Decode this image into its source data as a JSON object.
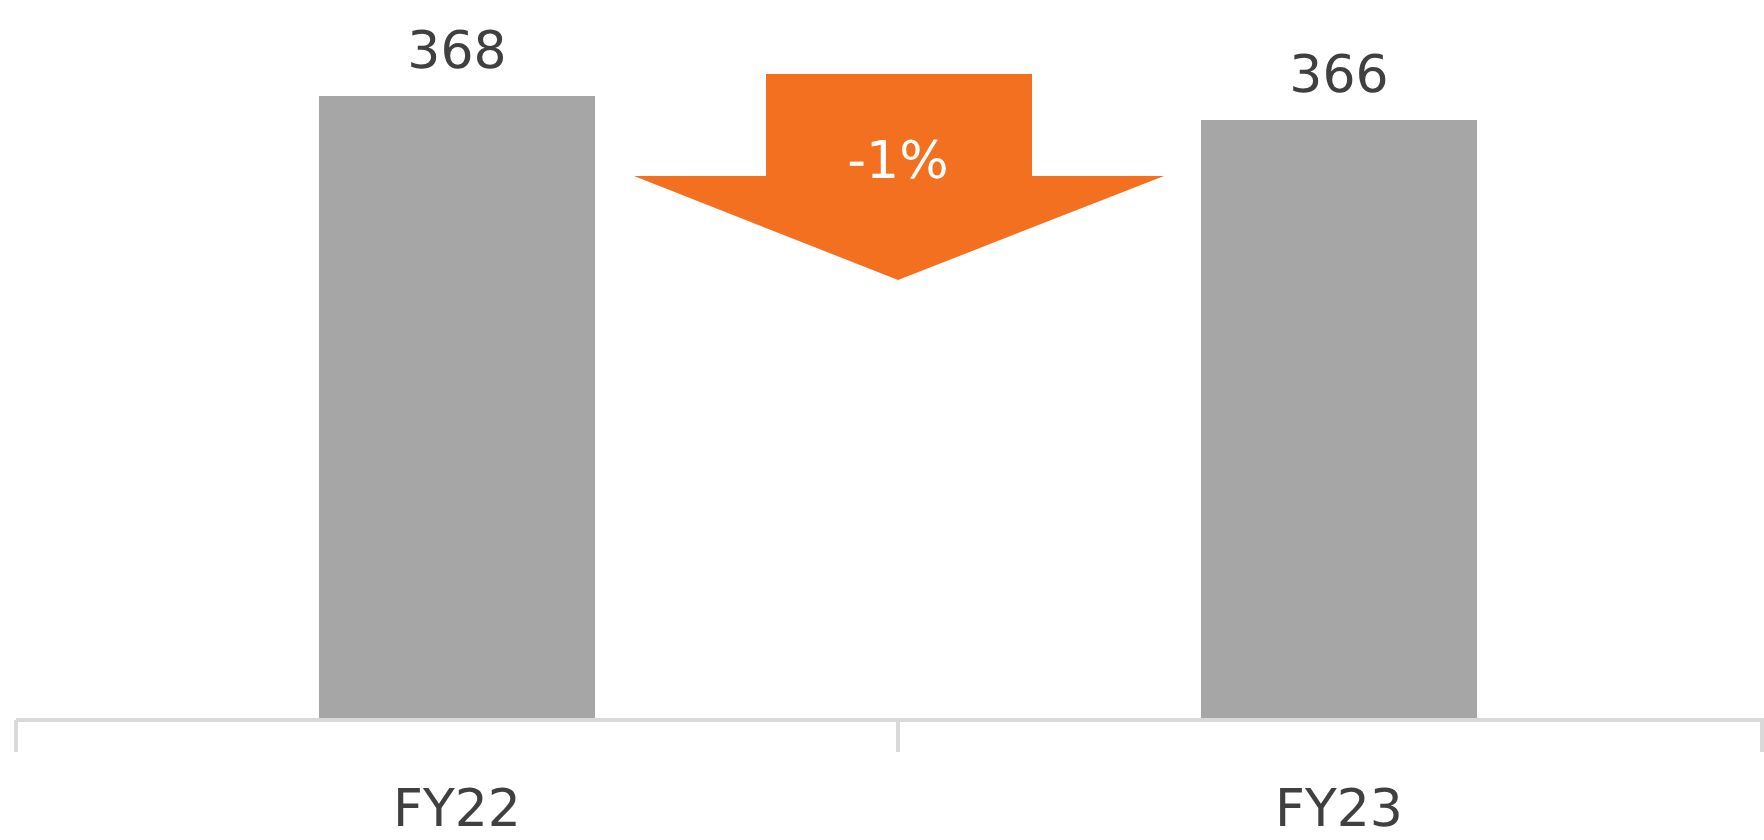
{
  "chart_data": {
    "type": "bar",
    "categories": [
      "FY22",
      "FY23"
    ],
    "values": [
      368,
      366
    ],
    "color": "#a6a6a6",
    "ylim": [
      316,
      376
    ],
    "data_labels": true,
    "tick_labels": "x",
    "annotations": [
      "-1%"
    ]
  }
}
